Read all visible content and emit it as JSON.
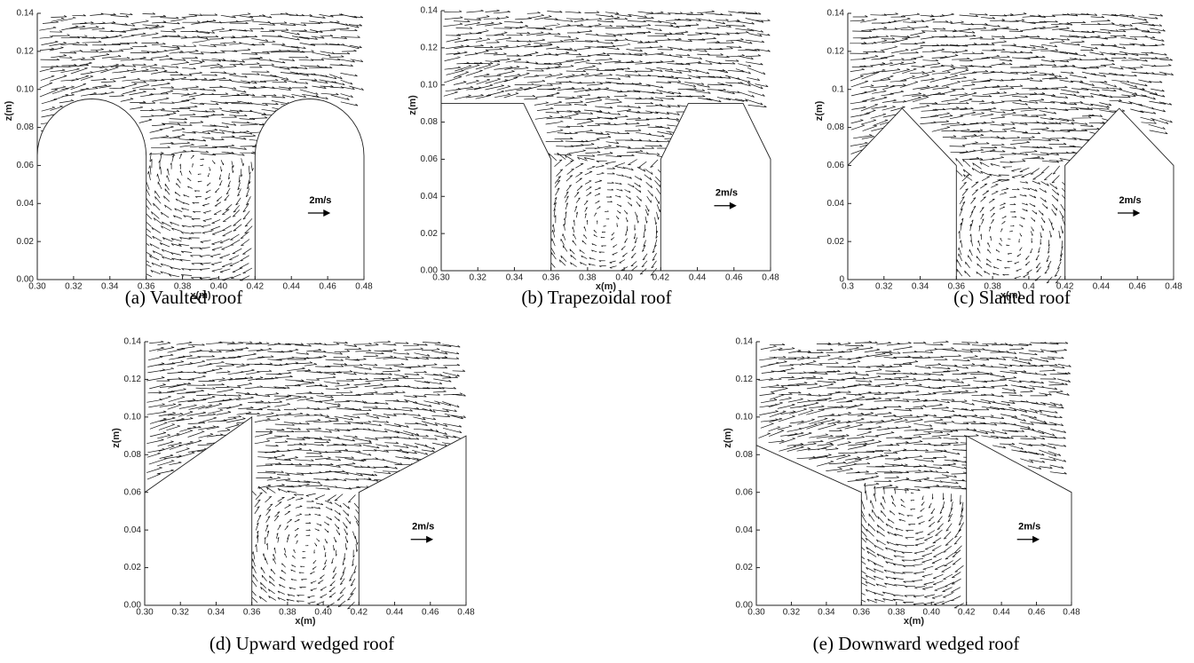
{
  "chart_data": [
    {
      "type": "vector",
      "caption": "(a) Vaulted roof",
      "xlabel": "x(m)",
      "ylabel": "z(m)",
      "annotation": "2m/s",
      "xlim": [
        0.3,
        0.48
      ],
      "ylim": [
        0,
        0.14
      ],
      "xticks": [
        {
          "value": 0.3,
          "label": "0.30"
        },
        0.32,
        0.34,
        0.36,
        0.38,
        {
          "value": 0.4,
          "label": "0.40"
        },
        0.42,
        0.44,
        0.46,
        0.48
      ],
      "yticks": [
        {
          "value": 0,
          "label": "0.00"
        },
        0.02,
        0.04,
        0.06,
        0.08,
        {
          "value": 0.1,
          "label": "0.10"
        },
        0.12,
        0.14
      ]
    },
    {
      "type": "vector",
      "caption": "(b) Trapezoidal roof",
      "xlabel": "x(m)",
      "ylabel": "z(m)",
      "annotation": "2m/s",
      "xlim": [
        0.3,
        0.48
      ],
      "ylim": [
        0,
        0.14
      ],
      "xticks": [
        {
          "value": 0.3,
          "label": "0.30"
        },
        0.32,
        0.34,
        0.36,
        0.38,
        {
          "value": 0.4,
          "label": "0.40"
        },
        0.42,
        0.44,
        0.46,
        0.48
      ],
      "yticks": [
        {
          "value": 0,
          "label": "0.00"
        },
        0.02,
        0.04,
        0.06,
        0.08,
        {
          "value": 0.1,
          "label": "0.10"
        },
        0.12,
        0.14
      ]
    },
    {
      "type": "vector",
      "caption": "(c) Slanted roof",
      "xlabel": "x(m)",
      "ylabel": "z(m)",
      "annotation": "2m/s",
      "xlim": [
        0.3,
        0.48
      ],
      "ylim": [
        0,
        0.14
      ],
      "xticks": [
        0.3,
        0.32,
        0.34,
        0.36,
        0.38,
        0.4,
        0.42,
        0.44,
        0.46,
        0.48
      ],
      "yticks": [
        0,
        0.02,
        0.04,
        0.06,
        0.08,
        0.1,
        0.12,
        0.14
      ]
    },
    {
      "type": "vector",
      "caption": "(d) Upward wedged roof",
      "xlabel": "x(m)",
      "ylabel": "z(m)",
      "annotation": "2m/s",
      "xlim": [
        0.3,
        0.48
      ],
      "ylim": [
        0,
        0.14
      ],
      "xticks": [
        {
          "value": 0.3,
          "label": "0.30"
        },
        0.32,
        0.34,
        0.36,
        0.38,
        {
          "value": 0.4,
          "label": "0.40"
        },
        0.42,
        0.44,
        0.46,
        0.48
      ],
      "yticks": [
        {
          "value": 0,
          "label": "0.00"
        },
        0.02,
        0.04,
        0.06,
        0.08,
        {
          "value": 0.1,
          "label": "0.10"
        },
        0.12,
        0.14
      ]
    },
    {
      "type": "vector",
      "caption": "(e) Downward wedged roof",
      "xlabel": "x(m)",
      "ylabel": "z(m)",
      "annotation": "2m/s",
      "xlim": [
        0.3,
        0.48
      ],
      "ylim": [
        0,
        0.14
      ],
      "xticks": [
        {
          "value": 0.3,
          "label": "0.30"
        },
        0.32,
        0.34,
        0.36,
        0.38,
        {
          "value": 0.4,
          "label": "0.40"
        },
        0.42,
        0.44,
        0.46,
        0.48
      ],
      "yticks": [
        {
          "value": 0,
          "label": "0.00"
        },
        0.02,
        0.04,
        0.06,
        0.08,
        {
          "value": 0.1,
          "label": "0.10"
        },
        0.12,
        0.14
      ]
    }
  ]
}
